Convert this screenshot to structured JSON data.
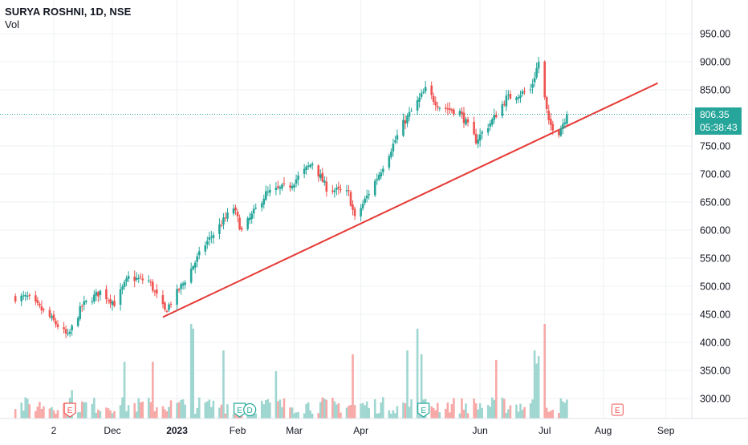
{
  "header": {
    "symbol": "SURYA ROSHNI, 1D, NSE",
    "volume_label": "Vol"
  },
  "price_tag": {
    "price": "806.35",
    "countdown": "05:38:43"
  },
  "colors": {
    "up": "#26a69a",
    "down": "#ef5350",
    "trendline": "#e53935",
    "vol_up": "#9fd6d0",
    "vol_down": "#f7a9a7",
    "grid": "#eef0f3",
    "text": "#131722"
  },
  "chart_data": {
    "type": "candlestick",
    "title": "SURYA ROSHNI, 1D, NSE",
    "ylim": [
      270,
      980
    ],
    "y_ticks": [
      300,
      350,
      400,
      450,
      500,
      550,
      600,
      650,
      700,
      750,
      800,
      850,
      900,
      950
    ],
    "y_tick_labels": [
      "300.00",
      "350.00",
      "400.00",
      "450.00",
      "500.00",
      "550.00",
      "600.00",
      "650.00",
      "700.00",
      "750.00",
      "800.00",
      "850.00",
      "900.00",
      "950.00"
    ],
    "x_ticks": [
      {
        "label": "2",
        "date": "2022-11-02",
        "bold": false
      },
      {
        "label": "Dec",
        "date": "2022-12-01",
        "bold": false
      },
      {
        "label": "2023",
        "date": "2023-01-02",
        "bold": true
      },
      {
        "label": "Feb",
        "date": "2023-02-01",
        "bold": false
      },
      {
        "label": "Mar",
        "date": "2023-03-01",
        "bold": false
      },
      {
        "label": "Apr",
        "date": "2023-04-03",
        "bold": false
      },
      {
        "label": "Jun",
        "date": "2023-06-01",
        "bold": false
      },
      {
        "label": "Jul",
        "date": "2023-07-03",
        "bold": false
      },
      {
        "label": "Aug",
        "date": "2023-08-01",
        "bold": false
      },
      {
        "label": "Sep",
        "date": "2023-09-01",
        "bold": false
      }
    ],
    "last_price": 806.35,
    "trendline": {
      "start": {
        "date": "2022-12-26",
        "price": 445
      },
      "end": {
        "date": "2023-08-28",
        "price": 862
      }
    },
    "event_markers": [
      {
        "date": "2022-11-10",
        "label": "E",
        "kind": "earnings-past"
      },
      {
        "date": "2023-02-02",
        "label": "E",
        "kind": "earnings-past"
      },
      {
        "date": "2023-02-07",
        "label": "D",
        "kind": "dividend"
      },
      {
        "date": "2023-05-04",
        "label": "E",
        "kind": "earnings-past"
      },
      {
        "date": "2023-08-08",
        "label": "E",
        "kind": "earnings-future"
      }
    ],
    "anchors": [
      [
        "2022-10-20",
        480
      ],
      [
        "2022-10-31",
        445
      ],
      [
        "2022-11-09",
        410
      ],
      [
        "2022-11-16",
        465
      ],
      [
        "2022-11-25",
        490
      ],
      [
        "2022-12-02",
        470
      ],
      [
        "2022-12-09",
        515
      ],
      [
        "2022-12-19",
        510
      ],
      [
        "2022-12-27",
        455
      ],
      [
        "2023-01-05",
        505
      ],
      [
        "2023-01-16",
        575
      ],
      [
        "2023-01-30",
        640
      ],
      [
        "2023-02-03",
        598
      ],
      [
        "2023-02-15",
        665
      ],
      [
        "2023-02-27",
        680
      ],
      [
        "2023-03-10",
        720
      ],
      [
        "2023-03-17",
        675
      ],
      [
        "2023-03-28",
        665
      ],
      [
        "2023-03-31",
        620
      ],
      [
        "2023-04-12",
        700
      ],
      [
        "2023-04-24",
        790
      ],
      [
        "2023-05-05",
        850
      ],
      [
        "2023-05-12",
        820
      ],
      [
        "2023-05-22",
        810
      ],
      [
        "2023-05-30",
        760
      ],
      [
        "2023-06-07",
        795
      ],
      [
        "2023-06-14",
        835
      ],
      [
        "2023-06-26",
        850
      ],
      [
        "2023-06-30",
        900
      ],
      [
        "2023-07-05",
        790
      ],
      [
        "2023-07-10",
        775
      ],
      [
        "2023-07-14",
        806
      ]
    ],
    "volume_spikes": [
      {
        "date": "2022-11-11",
        "value": 0.3
      },
      {
        "date": "2022-12-07",
        "value": 0.6
      },
      {
        "date": "2022-12-21",
        "value": 0.6
      },
      {
        "date": "2023-01-09",
        "value": 1.0
      },
      {
        "date": "2023-01-10",
        "value": 0.95
      },
      {
        "date": "2023-01-25",
        "value": 0.72
      },
      {
        "date": "2023-02-20",
        "value": 0.5
      },
      {
        "date": "2023-03-30",
        "value": 0.68
      },
      {
        "date": "2023-04-26",
        "value": 0.72
      },
      {
        "date": "2023-05-01",
        "value": 0.95
      },
      {
        "date": "2023-05-03",
        "value": 0.68
      },
      {
        "date": "2023-06-09",
        "value": 0.62
      },
      {
        "date": "2023-06-28",
        "value": 0.72
      },
      {
        "date": "2023-06-29",
        "value": 0.58
      },
      {
        "date": "2023-06-30",
        "value": 0.66
      },
      {
        "date": "2023-07-03",
        "value": 1.0
      }
    ]
  }
}
